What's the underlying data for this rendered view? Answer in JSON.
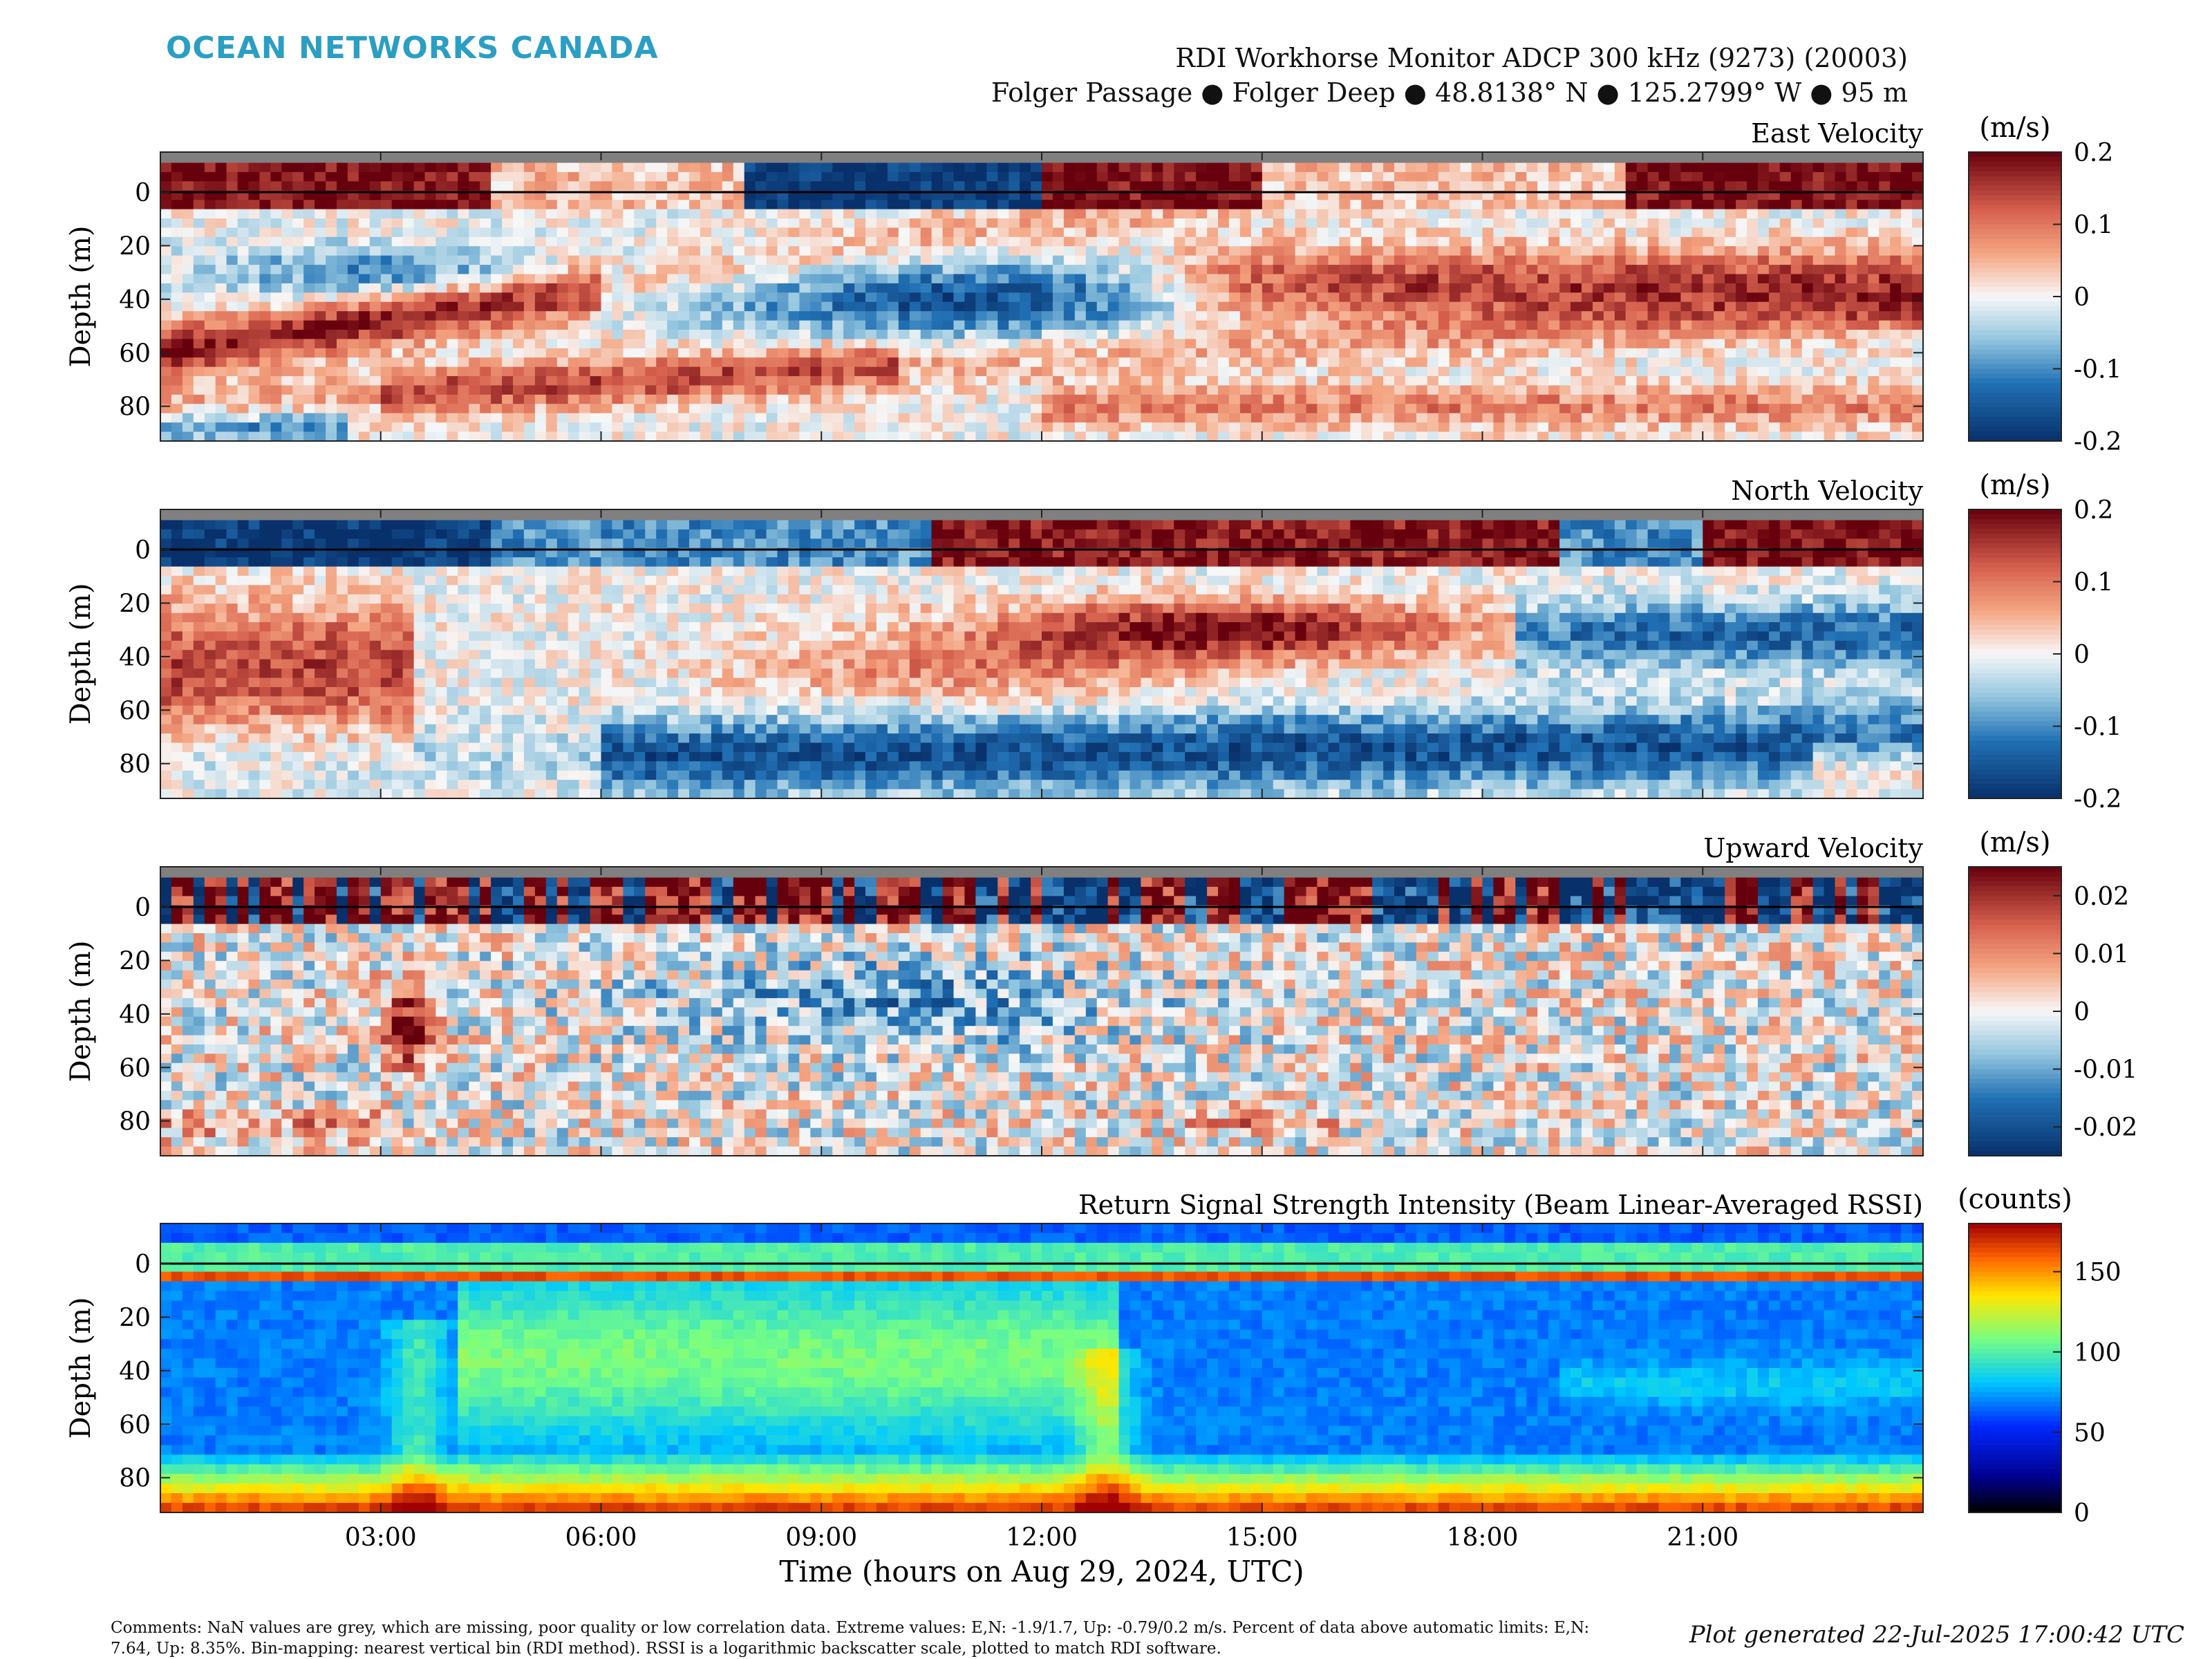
{
  "branding": {
    "logo_text": "OCEAN NETWORKS CANADA"
  },
  "header": {
    "title_line1": "RDI Workhorse Monitor ADCP 300 kHz (9273) (20003)",
    "title_line2": "Folger Passage ● Folger Deep ● 48.8138° N ● 125.2799° W ● 95 m"
  },
  "footer": {
    "comments": "Comments: NaN values are grey, which are missing, poor quality or low correlation data. Extreme values: E,N: -1.9/1.7, Up: -0.79/0.2 m/s. Percent of data above automatic limits: E,N: 7.64, Up: 8.35%. Bin-mapping: nearest vertical bin (RDI method). RSSI is a logarithmic backscatter scale, plotted to match RDI software.",
    "generated": "Plot generated 22-Jul-2025 17:00:42 UTC"
  },
  "shared_axes": {
    "xlabel": "Time (hours on Aug 29, 2024, UTC)",
    "ylabel": "Depth (m)",
    "x_ticks": [
      "03:00",
      "06:00",
      "09:00",
      "12:00",
      "15:00",
      "18:00",
      "21:00"
    ],
    "x_tick_hours": [
      3,
      6,
      9,
      12,
      15,
      18,
      21
    ],
    "xlim_hours": [
      0,
      24
    ],
    "y_ticks": [
      0,
      20,
      40,
      60,
      80
    ],
    "ylim": [
      -15,
      93
    ],
    "y_reversed": true
  },
  "chart_data": [
    {
      "type": "heatmap",
      "title": "East Velocity",
      "colorbar_label": "(m/s)",
      "colorbar_ticks": [
        "0.2",
        "0.1",
        "0",
        "-0.1",
        "-0.2"
      ],
      "clim": [
        -0.2,
        0.2
      ],
      "colormap": "diverging-red-white-blue",
      "surface_line_depth": 0,
      "features": [
        {
          "depth": [
            0,
            5
          ],
          "time": [
            0,
            4.5
          ],
          "value": 0.2
        },
        {
          "depth": [
            0,
            5
          ],
          "time": [
            8,
            12
          ],
          "value": -0.2
        },
        {
          "depth": [
            50,
            70
          ],
          "time": [
            0,
            4
          ],
          "value": 0.18
        },
        {
          "depth": [
            30,
            60
          ],
          "time": [
            8,
            15
          ],
          "value": -0.15
        },
        {
          "depth": [
            20,
            50
          ],
          "time": [
            16,
            24
          ],
          "value": 0.15
        },
        {
          "depth": [
            70,
            92
          ],
          "time": [
            0,
            3
          ],
          "value": -0.12
        }
      ]
    },
    {
      "type": "heatmap",
      "title": "North Velocity",
      "colorbar_label": "(m/s)",
      "colorbar_ticks": [
        "0.2",
        "0.1",
        "0",
        "-0.1",
        "-0.2"
      ],
      "clim": [
        -0.2,
        0.2
      ],
      "colormap": "diverging-red-white-blue",
      "surface_line_depth": 0,
      "features": [
        {
          "depth": [
            -5,
            0
          ],
          "time": [
            0,
            4.5
          ],
          "value": -0.2
        },
        {
          "depth": [
            20,
            70
          ],
          "time": [
            0,
            3.5
          ],
          "value": 0.14
        },
        {
          "depth": [
            20,
            40
          ],
          "time": [
            12,
            17
          ],
          "value": 0.2
        },
        {
          "depth": [
            60,
            92
          ],
          "time": [
            6,
            24
          ],
          "value": -0.15
        },
        {
          "depth": [
            20,
            50
          ],
          "time": [
            19,
            24
          ],
          "value": -0.12
        }
      ]
    },
    {
      "type": "heatmap",
      "title": "Upward Velocity",
      "colorbar_label": "(m/s)",
      "colorbar_ticks": [
        "0.02",
        "0.01",
        "0",
        "-0.01",
        "-0.02"
      ],
      "clim": [
        -0.025,
        0.025
      ],
      "colormap": "diverging-red-white-blue",
      "surface_line_depth": 0,
      "features": [
        {
          "depth": [
            20,
            70
          ],
          "time": [
            3,
            4
          ],
          "value": 0.025
        },
        {
          "depth": [
            30,
            60
          ],
          "time": [
            8,
            13
          ],
          "value": -0.012
        },
        {
          "depth": [
            75,
            85
          ],
          "time": [
            14,
            16
          ],
          "value": 0.008
        }
      ]
    },
    {
      "type": "heatmap",
      "title": "Return Signal Strength Intensity (Beam Linear-Averaged RSSI)",
      "colorbar_label": "(counts)",
      "colorbar_ticks": [
        "150",
        "100",
        "50",
        "0"
      ],
      "colorbar_tick_values": [
        150,
        100,
        50,
        0
      ],
      "clim": [
        0,
        180
      ],
      "colormap": "jet",
      "surface_line_depth": 0,
      "features": [
        {
          "depth": [
            3,
            7
          ],
          "time": [
            0,
            24
          ],
          "value": 160
        },
        {
          "depth": [
            15,
            70
          ],
          "time": [
            4,
            13
          ],
          "value": 110
        },
        {
          "depth": [
            20,
            70
          ],
          "time": [
            13,
            24
          ],
          "value": 55
        },
        {
          "depth": [
            80,
            92
          ],
          "time": [
            0,
            24
          ],
          "value": 170
        }
      ]
    }
  ]
}
